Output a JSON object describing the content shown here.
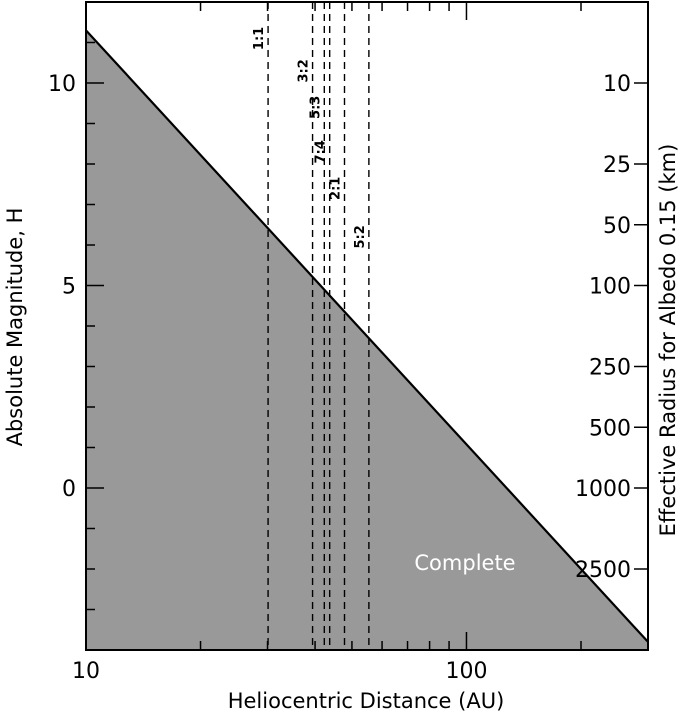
{
  "chart_data": {
    "type": "area",
    "xlabel": "Heliocentric Distance (AU)",
    "ylabel": "Absolute Magnitude, H",
    "y2label": "Effective Radius for Albedo 0.15 (km)",
    "x_scale": "log",
    "xlim": [
      10,
      300
    ],
    "ylim": [
      -4,
      12
    ],
    "x_ticks": [
      {
        "value": 10,
        "label": "10"
      },
      {
        "value": 100,
        "label": "100"
      }
    ],
    "y_ticks": [
      {
        "value": 0,
        "label": "0"
      },
      {
        "value": 5,
        "label": "5"
      },
      {
        "value": 10,
        "label": "10"
      }
    ],
    "y2_ticks": [
      {
        "H": 10.0,
        "label": "10"
      },
      {
        "H": 8.0,
        "label": "25"
      },
      {
        "H": 6.5,
        "label": "50"
      },
      {
        "H": 5.0,
        "label": "100"
      },
      {
        "H": 3.0,
        "label": "250"
      },
      {
        "H": 1.5,
        "label": "500"
      },
      {
        "H": 0.0,
        "label": "1000"
      },
      {
        "H": -2.0,
        "label": "2500"
      }
    ],
    "completeness_line": {
      "x": [
        10,
        300
      ],
      "y": [
        11.3,
        -3.8
      ]
    },
    "region_label": "Complete",
    "resonances": [
      {
        "label": "1:1",
        "a": 30.1,
        "label_H": 11.1
      },
      {
        "label": "3:2",
        "a": 39.4,
        "label_H": 10.3
      },
      {
        "label": "5:3",
        "a": 42.3,
        "label_H": 9.4
      },
      {
        "label": "7:4",
        "a": 43.7,
        "label_H": 8.3
      },
      {
        "label": "2:1",
        "a": 47.8,
        "label_H": 7.4
      },
      {
        "label": "5:2",
        "a": 55.4,
        "label_H": 6.2
      }
    ],
    "grid": false,
    "colors": {
      "fill": "#999999",
      "line": "#000000",
      "dashed": "#000000",
      "label_on_fill": "#ffffff"
    }
  }
}
